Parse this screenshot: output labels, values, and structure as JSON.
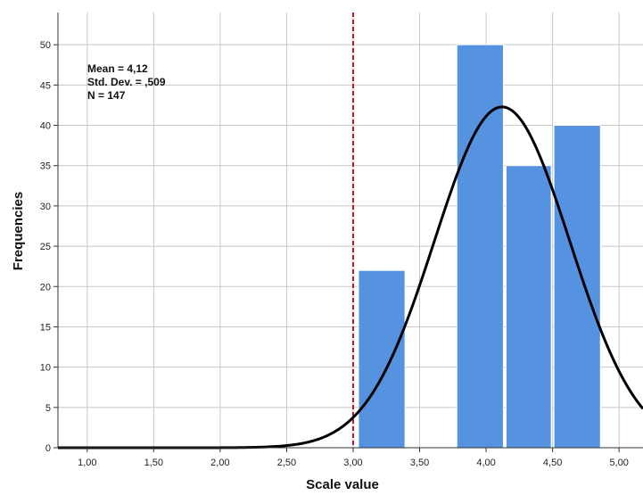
{
  "chart_data": {
    "type": "bar",
    "subtype": "histogram",
    "xlabel": "Scale value",
    "ylabel": "Frequencies",
    "xlim": [
      0.78,
      5.18
    ],
    "ylim": [
      0,
      54
    ],
    "x_ticks": [
      1.0,
      1.5,
      2.0,
      2.5,
      3.0,
      3.5,
      4.0,
      4.5,
      5.0
    ],
    "x_tick_labels": [
      "1,00",
      "1,50",
      "2,00",
      "2,50",
      "3,00",
      "3,50",
      "4,00",
      "4,50",
      "5,00"
    ],
    "y_ticks": [
      0,
      5,
      10,
      15,
      20,
      25,
      30,
      35,
      40,
      45,
      50
    ],
    "y_tick_labels": [
      "0",
      "5",
      "10",
      "15",
      "20",
      "25",
      "30",
      "35",
      "40",
      "45",
      "50"
    ],
    "bins": [
      {
        "start": 3.04,
        "end": 3.39,
        "count": 22
      },
      {
        "start": 3.78,
        "end": 4.13,
        "count": 50
      },
      {
        "start": 4.15,
        "end": 4.49,
        "count": 35
      },
      {
        "start": 4.51,
        "end": 4.86,
        "count": 40
      }
    ],
    "normal_curve": {
      "mean": 4.12,
      "sd": 0.509,
      "n": 147,
      "bin_width": 0.367
    },
    "reference_line": {
      "x": 3.0,
      "style": "dashed",
      "color": "#c8102e"
    },
    "stats_text": [
      "Mean = 4,12",
      "Std. Dev. = ,509",
      "N = 147"
    ],
    "grid": true,
    "colors": {
      "bar": "#5593e1",
      "bar_edge": "#ffffff",
      "curve": "#000000",
      "grid": "#c8c8c8",
      "axis": "#333333"
    }
  }
}
